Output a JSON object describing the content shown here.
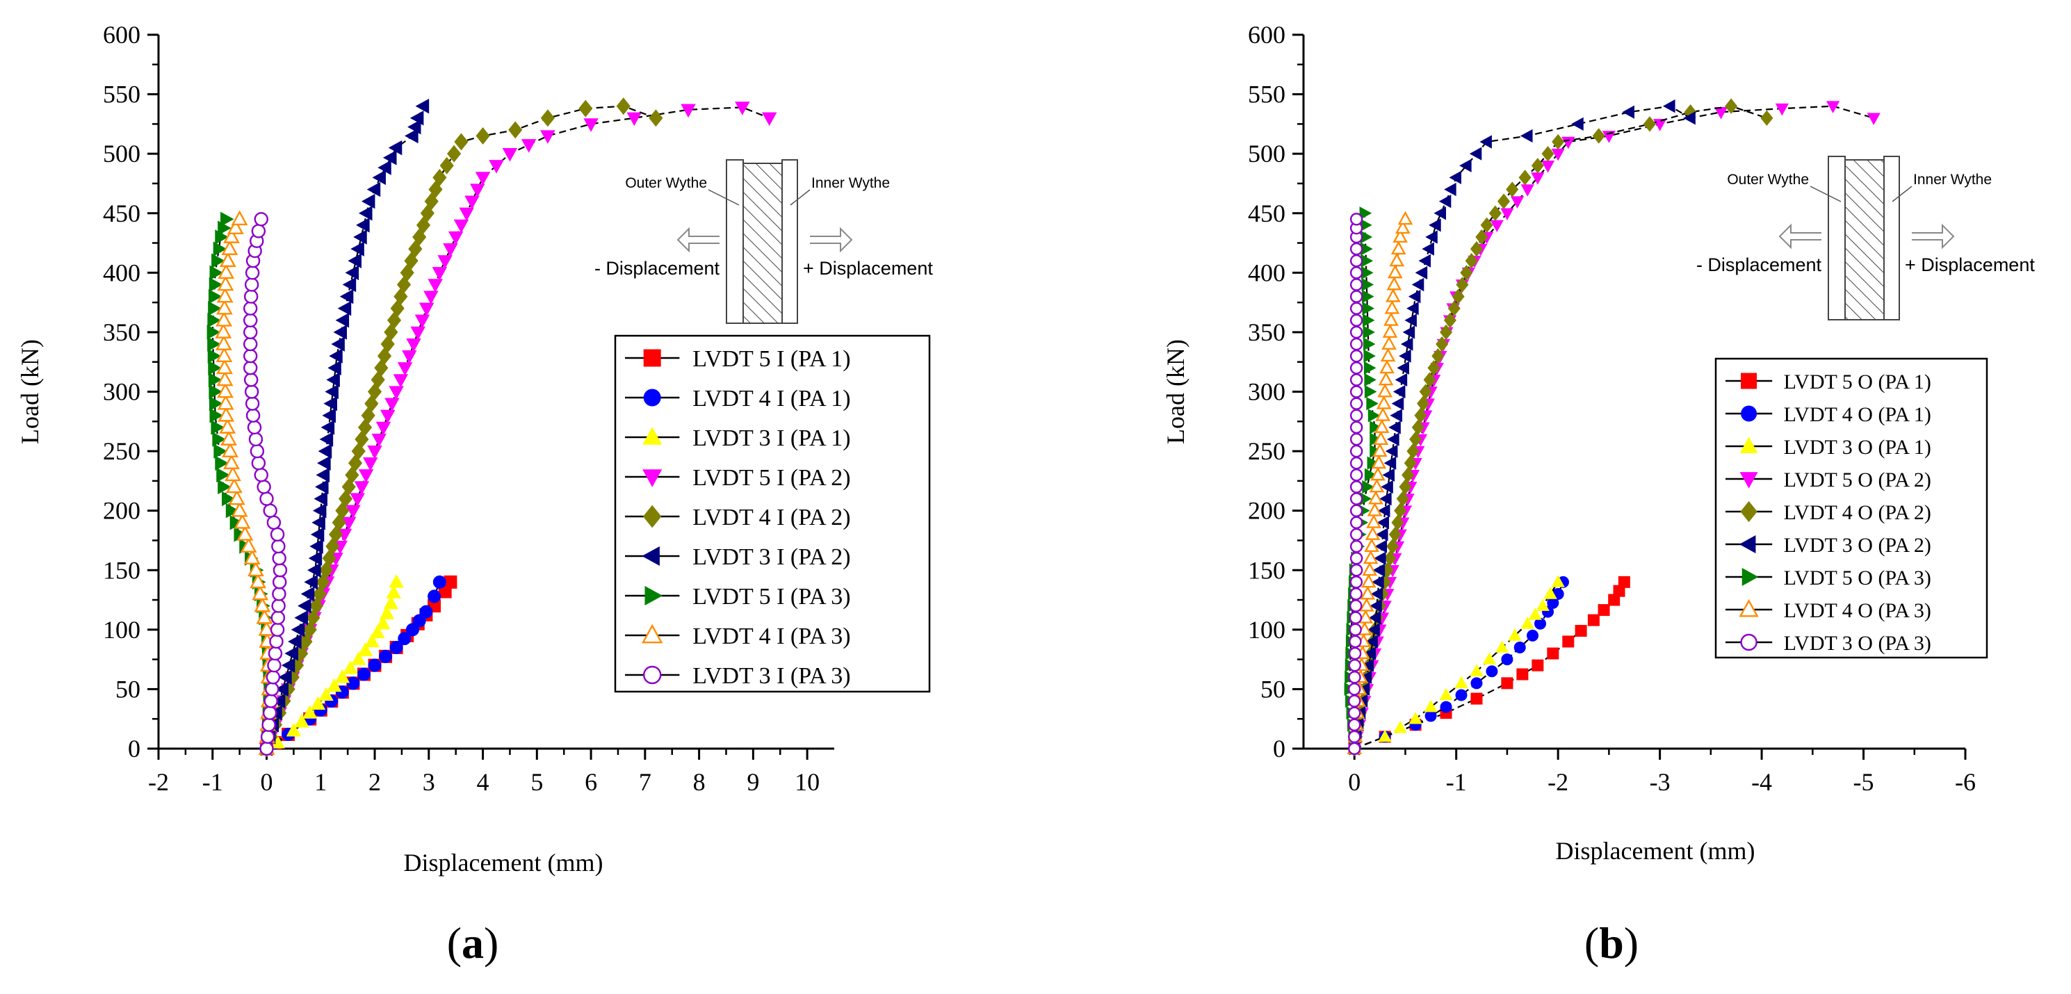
{
  "chart_data": [
    {
      "panel_label": "(a)",
      "type": "scatter",
      "xlabel": "Displacement (mm)",
      "ylabel": "Load (kN)",
      "xlim": [
        -2,
        10.5
      ],
      "ylim": [
        0,
        600
      ],
      "x_ticks": [
        "-2",
        "-1",
        "0",
        "1",
        "2",
        "3",
        "4",
        "5",
        "6",
        "7",
        "8",
        "9",
        "10"
      ],
      "y_ticks": [
        "0",
        "50",
        "100",
        "150",
        "200",
        "250",
        "300",
        "350",
        "400",
        "450",
        "500",
        "550",
        "600"
      ],
      "grid": false,
      "legend_position": "right",
      "inset": {
        "outer_label": "Outer Wythe",
        "inner_label": "Inner Wythe",
        "neg_label": "- Displacement",
        "pos_label": "+ Displacement"
      },
      "series": [
        {
          "name": "LVDT 5 I (PA 1)",
          "color": "#ff0000",
          "marker": "square",
          "filled": true,
          "x": [
            0,
            0.15,
            0.4,
            0.8,
            1.2,
            1.6,
            2.0,
            2.4,
            2.8,
            3.1,
            3.3,
            3.4
          ],
          "y": [
            0,
            5,
            12,
            25,
            40,
            55,
            70,
            85,
            105,
            120,
            132,
            140
          ]
        },
        {
          "name": "LVDT 4 I (PA 1)",
          "color": "#0000ff",
          "marker": "circle",
          "filled": true,
          "x": [
            0,
            0.15,
            0.4,
            0.8,
            1.2,
            1.6,
            2.0,
            2.4,
            2.7,
            2.95,
            3.1,
            3.2
          ],
          "y": [
            0,
            5,
            12,
            25,
            40,
            55,
            70,
            85,
            100,
            115,
            128,
            140
          ]
        },
        {
          "name": "LVDT 3 I (PA 1)",
          "color": "#ffff00",
          "marker": "triangle-up",
          "filled": true,
          "x": [
            0,
            0.2,
            0.5,
            0.8,
            1.1,
            1.4,
            1.7,
            1.95,
            2.15,
            2.3,
            2.4
          ],
          "y": [
            0,
            5,
            15,
            30,
            45,
            60,
            75,
            90,
            105,
            122,
            140
          ]
        },
        {
          "name": "LVDT 5 I (PA 2)",
          "color": "#ff00ff",
          "marker": "triangle-down",
          "filled": true,
          "x": [
            0,
            0.4,
            0.8,
            1.2,
            1.6,
            2.0,
            2.4,
            2.8,
            3.2,
            3.6,
            4.0,
            4.5,
            5.2,
            6.0,
            6.8,
            7.8,
            8.8,
            9.3
          ],
          "y": [
            0,
            50,
            100,
            150,
            200,
            250,
            300,
            350,
            400,
            440,
            480,
            500,
            515,
            525,
            530,
            537,
            539,
            530
          ]
        },
        {
          "name": "LVDT 4 I (PA 2)",
          "color": "#808000",
          "marker": "diamond",
          "filled": true,
          "x": [
            0,
            0.4,
            0.8,
            1.1,
            1.4,
            1.7,
            2.0,
            2.3,
            2.6,
            2.9,
            3.2,
            3.6,
            4.0,
            4.6,
            5.2,
            5.9,
            6.6,
            7.2
          ],
          "y": [
            0,
            50,
            100,
            150,
            200,
            250,
            300,
            350,
            400,
            440,
            480,
            510,
            515,
            520,
            530,
            538,
            540,
            530
          ]
        },
        {
          "name": "LVDT 3 I (PA 2)",
          "color": "#000080",
          "marker": "triangle-left",
          "filled": true,
          "x": [
            0,
            0.3,
            0.6,
            0.9,
            1.1,
            1.3,
            1.5,
            1.7,
            1.9,
            2.1,
            2.4,
            2.7,
            2.8,
            2.9
          ],
          "y": [
            0,
            50,
            100,
            150,
            250,
            330,
            380,
            420,
            460,
            480,
            505,
            515,
            530,
            540
          ]
        },
        {
          "name": "LVDT 5 I (PA 3)",
          "color": "#008000",
          "marker": "triangle-right",
          "filled": true,
          "x": [
            0,
            0.05,
            0.0,
            -0.2,
            -0.5,
            -0.8,
            -0.95,
            -1.0,
            -0.95,
            -0.85,
            -0.75
          ],
          "y": [
            0,
            50,
            100,
            150,
            180,
            220,
            280,
            350,
            400,
            430,
            445
          ]
        },
        {
          "name": "LVDT 4 I (PA 3)",
          "color": "#ff8c00",
          "marker": "triangle-up",
          "filled": false,
          "x": [
            0,
            0.05,
            0.0,
            -0.2,
            -0.4,
            -0.6,
            -0.75,
            -0.8,
            -0.75,
            -0.65,
            -0.5
          ],
          "y": [
            0,
            50,
            100,
            150,
            180,
            220,
            280,
            350,
            400,
            430,
            445
          ]
        },
        {
          "name": "LVDT 3 I (PA 3)",
          "color": "#8b00c8",
          "marker": "circle",
          "filled": false,
          "x": [
            0,
            0.1,
            0.2,
            0.25,
            0.2,
            0.0,
            -0.15,
            -0.25,
            -0.3,
            -0.3,
            -0.25,
            -0.15,
            -0.1
          ],
          "y": [
            0,
            50,
            100,
            150,
            180,
            210,
            240,
            280,
            320,
            370,
            410,
            435,
            445
          ]
        }
      ]
    },
    {
      "panel_label": "(b)",
      "type": "scatter",
      "xlabel": "Displacement (mm)",
      "ylabel": "Load (kN)",
      "xlim": [
        0.5,
        -6
      ],
      "ylim": [
        0,
        600
      ],
      "x_ticks": [
        "0",
        "-1",
        "-2",
        "-3",
        "-4",
        "-5",
        "-6"
      ],
      "y_ticks": [
        "0",
        "50",
        "100",
        "150",
        "200",
        "250",
        "300",
        "350",
        "400",
        "450",
        "500",
        "550",
        "600"
      ],
      "grid": false,
      "legend_position": "right",
      "inset": {
        "outer_label": "Outer Wythe",
        "inner_label": "Inner Wythe",
        "neg_label": "- Displacement",
        "pos_label": "+ Displacement"
      },
      "series": [
        {
          "name": "LVDT 5 O (PA 1)",
          "color": "#ff0000",
          "marker": "square",
          "filled": true,
          "x": [
            0,
            -0.3,
            -0.6,
            -0.9,
            -1.2,
            -1.5,
            -1.8,
            -2.1,
            -2.35,
            -2.55,
            -2.65
          ],
          "y": [
            0,
            10,
            20,
            30,
            42,
            55,
            70,
            90,
            108,
            125,
            140
          ]
        },
        {
          "name": "LVDT 4 O (PA 1)",
          "color": "#0000ff",
          "marker": "circle",
          "filled": true,
          "x": [
            0,
            -0.3,
            -0.6,
            -0.9,
            -1.2,
            -1.5,
            -1.75,
            -1.9,
            -2.0,
            -2.05
          ],
          "y": [
            0,
            10,
            20,
            35,
            55,
            75,
            95,
            115,
            130,
            140
          ]
        },
        {
          "name": "LVDT 3 O (PA 1)",
          "color": "#ffff00",
          "marker": "triangle-up",
          "filled": true,
          "x": [
            0,
            -0.3,
            -0.6,
            -0.9,
            -1.2,
            -1.45,
            -1.7,
            -1.85,
            -2.0
          ],
          "y": [
            0,
            10,
            25,
            45,
            65,
            85,
            105,
            120,
            140
          ]
        },
        {
          "name": "LVDT 5 O (PA 2)",
          "color": "#ff00ff",
          "marker": "triangle-down",
          "filled": true,
          "x": [
            0,
            -0.25,
            -0.5,
            -0.75,
            -1.0,
            -1.3,
            -1.6,
            -1.9,
            -2.1,
            -2.5,
            -3.0,
            -3.6,
            -4.2,
            -4.7,
            -5.1
          ],
          "y": [
            0,
            100,
            200,
            300,
            380,
            430,
            460,
            490,
            510,
            515,
            525,
            535,
            538,
            540,
            530
          ]
        },
        {
          "name": "LVDT 4 O (PA 2)",
          "color": "#808000",
          "marker": "diamond",
          "filled": true,
          "x": [
            0,
            -0.2,
            -0.45,
            -0.7,
            -0.9,
            -1.1,
            -1.3,
            -1.55,
            -1.8,
            -2.0,
            -2.4,
            -2.9,
            -3.3,
            -3.7,
            -4.05
          ],
          "y": [
            0,
            100,
            200,
            300,
            350,
            400,
            440,
            470,
            490,
            510,
            515,
            525,
            535,
            540,
            530
          ]
        },
        {
          "name": "LVDT 3 O (PA 2)",
          "color": "#000080",
          "marker": "triangle-left",
          "filled": true,
          "x": [
            0,
            -0.1,
            -0.2,
            -0.3,
            -0.45,
            -0.6,
            -0.8,
            -1.0,
            -1.3,
            -1.7,
            -2.2,
            -2.7,
            -3.1,
            -3.3
          ],
          "y": [
            0,
            50,
            100,
            200,
            300,
            380,
            440,
            480,
            510,
            515,
            525,
            535,
            540,
            530
          ]
        },
        {
          "name": "LVDT 5 O (PA 3)",
          "color": "#008000",
          "marker": "triangle-right",
          "filled": true,
          "x": [
            0,
            0.05,
            0.03,
            0.0,
            -0.05,
            -0.1,
            -0.15,
            -0.2,
            -0.2,
            -0.15,
            -0.1
          ],
          "y": [
            0,
            50,
            100,
            150,
            180,
            210,
            230,
            250,
            270,
            300,
            450
          ]
        },
        {
          "name": "LVDT 4 O (PA 3)",
          "color": "#ff8c00",
          "marker": "triangle-up",
          "filled": false,
          "x": [
            0,
            -0.05,
            -0.1,
            -0.15,
            -0.2,
            -0.25,
            -0.3,
            -0.35,
            -0.4,
            -0.45,
            -0.5
          ],
          "y": [
            0,
            50,
            100,
            150,
            200,
            250,
            300,
            350,
            400,
            430,
            445
          ]
        },
        {
          "name": "LVDT 3 O (PA 3)",
          "color": "#8b00c8",
          "marker": "circle",
          "filled": false,
          "x": [
            0,
            0.0,
            -0.01,
            -0.02,
            -0.02,
            -0.02,
            -0.02,
            -0.02,
            -0.02,
            -0.02,
            -0.02
          ],
          "y": [
            0,
            50,
            100,
            150,
            200,
            250,
            300,
            350,
            400,
            430,
            445
          ]
        }
      ]
    }
  ]
}
